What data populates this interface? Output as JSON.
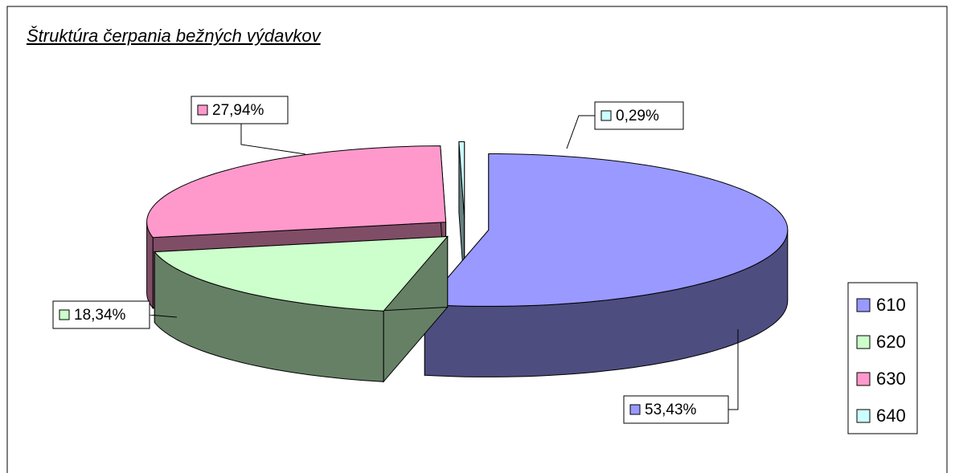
{
  "chart_data": {
    "type": "pie",
    "title": "Štruktúra čerpania bežných výdavkov",
    "categories": [
      "610",
      "620",
      "630",
      "640"
    ],
    "values": [
      53.43,
      18.34,
      27.94,
      0.29
    ],
    "value_labels": [
      "53,43%",
      "18,34%",
      "27,94%",
      "0,29%"
    ],
    "colors": [
      "#9999ff",
      "#ccffcc",
      "#ff99cc",
      "#ccffff"
    ],
    "legend": "right"
  }
}
